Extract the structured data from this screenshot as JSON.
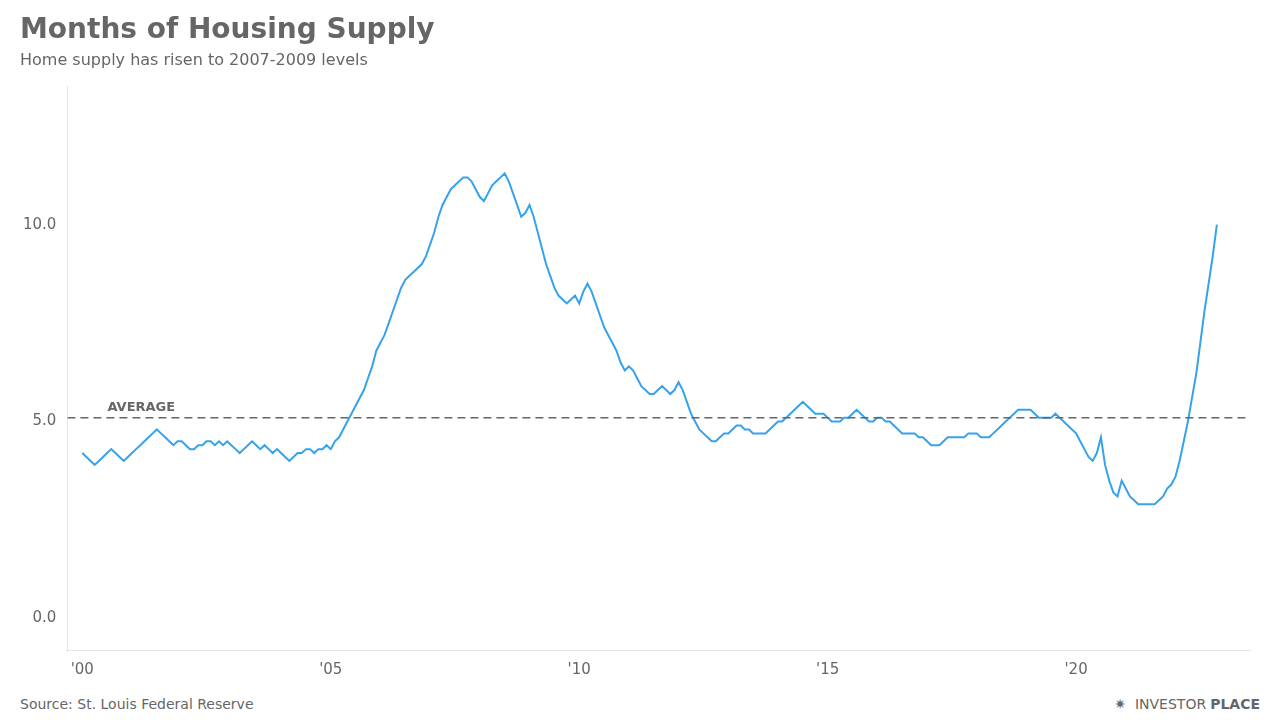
{
  "chart_data": {
    "type": "line",
    "title": "Months of Housing Supply",
    "subtitle": "Home supply has risen to 2007-2009 levels",
    "annotations": [
      {
        "text": "Source: St. Louis Federal Reserve"
      },
      {
        "text": "✷  INVESTOR"
      },
      {
        "text": "PLACE"
      }
    ],
    "reference_lines": [
      {
        "value": 5.1,
        "label": "AVERAGE",
        "line_style": "dashed",
        "color": "#666666"
      }
    ],
    "grid": false,
    "xlim": [
      1999.7,
      2023.5
    ],
    "xticks": [
      {
        "value": 2000,
        "label": "'00"
      },
      {
        "value": 2005,
        "label": "'05"
      },
      {
        "value": 2010,
        "label": "'10"
      },
      {
        "value": 2015,
        "label": "'15"
      },
      {
        "value": 2020,
        "label": "'20"
      }
    ],
    "ylim": [
      -0.8,
      13.5
    ],
    "yticks": [
      {
        "value": 0.0,
        "label": "0.0"
      },
      {
        "value": 5.0,
        "label": "5.0"
      },
      {
        "value": 10.0,
        "label": "10.0"
      }
    ],
    "x": [
      2000.0,
      2000.083,
      2000.167,
      2000.25,
      2000.333,
      2000.417,
      2000.5,
      2000.583,
      2000.667,
      2000.75,
      2000.833,
      2000.917,
      2001.0,
      2001.083,
      2001.167,
      2001.25,
      2001.333,
      2001.417,
      2001.5,
      2001.583,
      2001.667,
      2001.75,
      2001.833,
      2001.917,
      2002.0,
      2002.083,
      2002.167,
      2002.25,
      2002.333,
      2002.417,
      2002.5,
      2002.583,
      2002.667,
      2002.75,
      2002.833,
      2002.917,
      2003.0,
      2003.083,
      2003.167,
      2003.25,
      2003.333,
      2003.417,
      2003.5,
      2003.583,
      2003.667,
      2003.75,
      2003.833,
      2003.917,
      2004.0,
      2004.083,
      2004.167,
      2004.25,
      2004.333,
      2004.417,
      2004.5,
      2004.583,
      2004.667,
      2004.75,
      2004.833,
      2004.917,
      2005.0,
      2005.083,
      2005.167,
      2005.25,
      2005.333,
      2005.417,
      2005.5,
      2005.583,
      2005.667,
      2005.75,
      2005.833,
      2005.917,
      2006.0,
      2006.083,
      2006.167,
      2006.25,
      2006.333,
      2006.417,
      2006.5,
      2006.583,
      2006.667,
      2006.75,
      2006.833,
      2006.917,
      2007.0,
      2007.083,
      2007.167,
      2007.25,
      2007.333,
      2007.417,
      2007.5,
      2007.583,
      2007.667,
      2007.75,
      2007.833,
      2007.917,
      2008.0,
      2008.083,
      2008.167,
      2008.25,
      2008.333,
      2008.417,
      2008.5,
      2008.583,
      2008.667,
      2008.75,
      2008.833,
      2008.917,
      2009.0,
      2009.083,
      2009.167,
      2009.25,
      2009.333,
      2009.417,
      2009.5,
      2009.583,
      2009.667,
      2009.75,
      2009.833,
      2009.917,
      2010.0,
      2010.083,
      2010.167,
      2010.25,
      2010.333,
      2010.417,
      2010.5,
      2010.583,
      2010.667,
      2010.75,
      2010.833,
      2010.917,
      2011.0,
      2011.083,
      2011.167,
      2011.25,
      2011.333,
      2011.417,
      2011.5,
      2011.583,
      2011.667,
      2011.75,
      2011.833,
      2011.917,
      2012.0,
      2012.083,
      2012.167,
      2012.25,
      2012.333,
      2012.417,
      2012.5,
      2012.583,
      2012.667,
      2012.75,
      2012.833,
      2012.917,
      2013.0,
      2013.083,
      2013.167,
      2013.25,
      2013.333,
      2013.417,
      2013.5,
      2013.583,
      2013.667,
      2013.75,
      2013.833,
      2013.917,
      2014.0,
      2014.083,
      2014.167,
      2014.25,
      2014.333,
      2014.417,
      2014.5,
      2014.583,
      2014.667,
      2014.75,
      2014.833,
      2014.917,
      2015.0,
      2015.083,
      2015.167,
      2015.25,
      2015.333,
      2015.417,
      2015.5,
      2015.583,
      2015.667,
      2015.75,
      2015.833,
      2015.917,
      2016.0,
      2016.083,
      2016.167,
      2016.25,
      2016.333,
      2016.417,
      2016.5,
      2016.583,
      2016.667,
      2016.75,
      2016.833,
      2016.917,
      2017.0,
      2017.083,
      2017.167,
      2017.25,
      2017.333,
      2017.417,
      2017.5,
      2017.583,
      2017.667,
      2017.75,
      2017.833,
      2017.917,
      2018.0,
      2018.083,
      2018.167,
      2018.25,
      2018.333,
      2018.417,
      2018.5,
      2018.583,
      2018.667,
      2018.75,
      2018.833,
      2018.917,
      2019.0,
      2019.083,
      2019.167,
      2019.25,
      2019.333,
      2019.417,
      2019.5,
      2019.583,
      2019.667,
      2019.75,
      2019.833,
      2019.917,
      2020.0,
      2020.083,
      2020.167,
      2020.25,
      2020.333,
      2020.417,
      2020.5,
      2020.583,
      2020.667,
      2020.75,
      2020.833,
      2020.917,
      2021.0,
      2021.083,
      2021.167,
      2021.25,
      2021.333,
      2021.417,
      2021.5,
      2021.583,
      2021.667,
      2021.75,
      2021.833,
      2021.917,
      2022.0,
      2022.083,
      2022.167,
      2022.25,
      2022.333,
      2022.417,
      2022.5,
      2022.583,
      2022.667,
      2022.75,
      2022.833
    ],
    "values": [
      4.2,
      4.1,
      4.0,
      3.9,
      4.0,
      4.1,
      4.2,
      4.3,
      4.2,
      4.1,
      4.0,
      4.1,
      4.2,
      4.3,
      4.4,
      4.5,
      4.6,
      4.7,
      4.8,
      4.7,
      4.6,
      4.5,
      4.4,
      4.5,
      4.5,
      4.4,
      4.3,
      4.3,
      4.4,
      4.4,
      4.5,
      4.5,
      4.4,
      4.5,
      4.4,
      4.5,
      4.4,
      4.3,
      4.2,
      4.3,
      4.4,
      4.5,
      4.4,
      4.3,
      4.4,
      4.3,
      4.2,
      4.3,
      4.2,
      4.1,
      4.0,
      4.1,
      4.2,
      4.2,
      4.3,
      4.3,
      4.2,
      4.3,
      4.3,
      4.4,
      4.3,
      4.5,
      4.6,
      4.8,
      5.0,
      5.2,
      5.4,
      5.6,
      5.8,
      6.1,
      6.4,
      6.8,
      7.0,
      7.2,
      7.5,
      7.8,
      8.1,
      8.4,
      8.6,
      8.7,
      8.8,
      8.9,
      9.0,
      9.2,
      9.5,
      9.8,
      10.2,
      10.5,
      10.7,
      10.9,
      11.0,
      11.1,
      11.2,
      11.2,
      11.1,
      10.9,
      10.7,
      10.6,
      10.8,
      11.0,
      11.1,
      11.2,
      11.3,
      11.1,
      10.8,
      10.5,
      10.2,
      10.3,
      10.5,
      10.2,
      9.8,
      9.4,
      9.0,
      8.7,
      8.4,
      8.2,
      8.1,
      8.0,
      8.1,
      8.2,
      8.0,
      8.3,
      8.5,
      8.3,
      8.0,
      7.7,
      7.4,
      7.2,
      7.0,
      6.8,
      6.5,
      6.3,
      6.4,
      6.3,
      6.1,
      5.9,
      5.8,
      5.7,
      5.7,
      5.8,
      5.9,
      5.8,
      5.7,
      5.8,
      6.0,
      5.8,
      5.5,
      5.2,
      5.0,
      4.8,
      4.7,
      4.6,
      4.5,
      4.5,
      4.6,
      4.7,
      4.7,
      4.8,
      4.9,
      4.9,
      4.8,
      4.8,
      4.7,
      4.7,
      4.7,
      4.7,
      4.8,
      4.9,
      5.0,
      5.0,
      5.1,
      5.2,
      5.3,
      5.4,
      5.5,
      5.4,
      5.3,
      5.2,
      5.2,
      5.2,
      5.1,
      5.0,
      5.0,
      5.0,
      5.1,
      5.1,
      5.2,
      5.3,
      5.2,
      5.1,
      5.0,
      5.0,
      5.1,
      5.1,
      5.0,
      5.0,
      4.9,
      4.8,
      4.7,
      4.7,
      4.7,
      4.7,
      4.6,
      4.6,
      4.5,
      4.4,
      4.4,
      4.4,
      4.5,
      4.6,
      4.6,
      4.6,
      4.6,
      4.6,
      4.7,
      4.7,
      4.7,
      4.6,
      4.6,
      4.6,
      4.7,
      4.8,
      4.9,
      5.0,
      5.1,
      5.2,
      5.3,
      5.3,
      5.3,
      5.3,
      5.2,
      5.1,
      5.1,
      5.1,
      5.1,
      5.2,
      5.1,
      5.0,
      4.9,
      4.8,
      4.7,
      4.5,
      4.3,
      4.1,
      4.0,
      4.2,
      4.6,
      3.9,
      3.5,
      3.2,
      3.1,
      3.5,
      3.3,
      3.1,
      3.0,
      2.9,
      2.9,
      2.9,
      2.9,
      2.9,
      3.0,
      3.1,
      3.3,
      3.4,
      3.6,
      4.0,
      4.5,
      5.0,
      5.6,
      6.2,
      7.0,
      7.8,
      8.5,
      9.2,
      10.0
    ]
  }
}
